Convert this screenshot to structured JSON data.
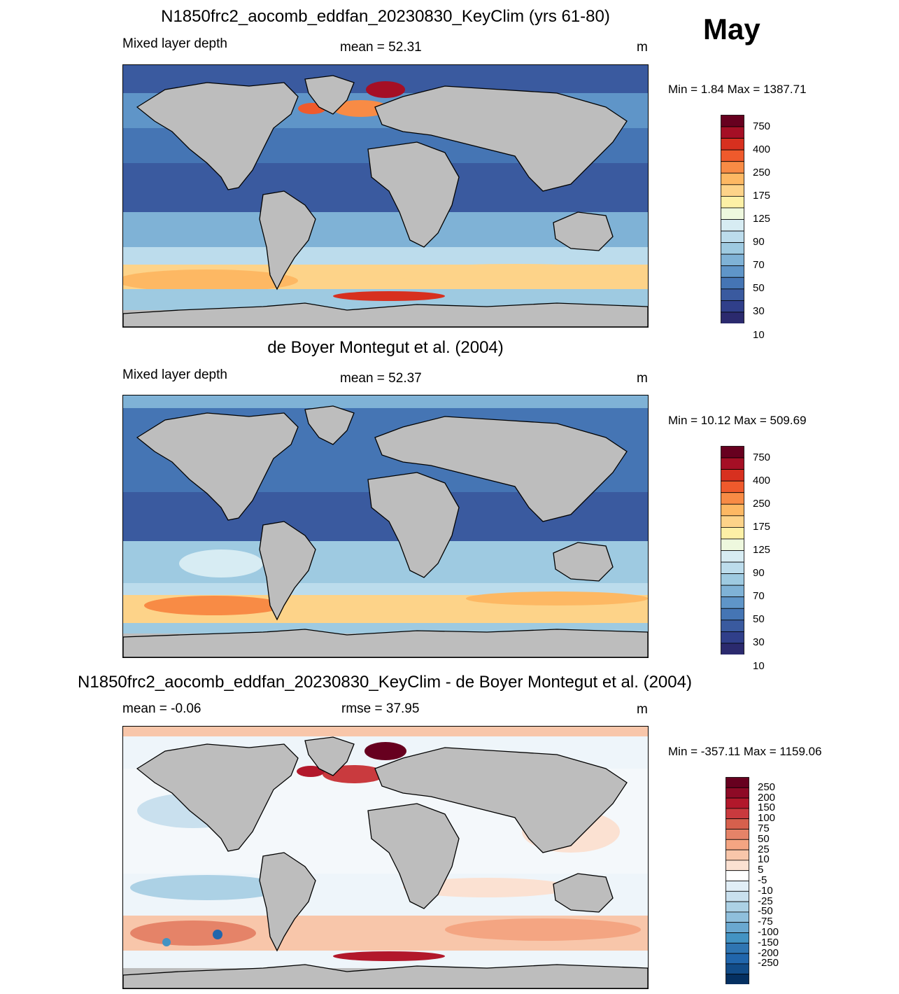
{
  "month": "May",
  "panels": [
    {
      "id": "model",
      "title": "N1850frc2_aocomb_eddfan_20230830_KeyClim (yrs 61-80)",
      "left_label": "Mixed layer depth",
      "center_label": "mean =  52.31",
      "units": "m",
      "minmax": "Min =   1.84 Max = 1387.71",
      "palette": "abs"
    },
    {
      "id": "obs",
      "title": "de Boyer Montegut et al. (2004)",
      "left_label": "Mixed layer depth",
      "center_label": "mean =  52.37",
      "units": "m",
      "minmax": "Min =  10.12 Max = 509.69",
      "palette": "abs"
    },
    {
      "id": "diff",
      "title": "N1850frc2_aocomb_eddfan_20230830_KeyClim - de Boyer Montegut et al. (2004)",
      "left_label": "mean =  -0.06",
      "center_label": "rmse =  37.95",
      "units": "m",
      "minmax": "Min = -357.11 Max = 1159.06",
      "palette": "diff"
    }
  ],
  "colorbars": {
    "abs": {
      "labels": [
        "750",
        "400",
        "250",
        "175",
        "125",
        "90",
        "70",
        "50",
        "30",
        "10"
      ],
      "colors": [
        "#67001f",
        "#a50f25",
        "#d7301f",
        "#ef5a2c",
        "#f88b45",
        "#fdb863",
        "#fdd389",
        "#fdf0a6",
        "#eef8de",
        "#d7ecf3",
        "#bcdcec",
        "#9ecae1",
        "#7fb2d6",
        "#5f95c8",
        "#4575b4",
        "#3a5a9f",
        "#303f8a",
        "#2b2a6e"
      ]
    },
    "diff": {
      "labels": [
        "250",
        "200",
        "150",
        "100",
        "75",
        "50",
        "25",
        "10",
        "5",
        "-5",
        "-10",
        "-25",
        "-50",
        "-75",
        "-100",
        "-150",
        "-200",
        "-250"
      ],
      "colors": [
        "#67001f",
        "#8e0a26",
        "#b2182b",
        "#c93a3e",
        "#d6604d",
        "#e58368",
        "#f4a582",
        "#f8c6aa",
        "#fbe1d2",
        "#ffffff",
        "#e1eef6",
        "#c9e0ee",
        "#acd1e5",
        "#8fbfdc",
        "#6aa8d0",
        "#4393c3",
        "#2f75b2",
        "#2166ac",
        "#124c88",
        "#053061"
      ]
    }
  },
  "colors": {
    "land": "#bdbdbd",
    "ocean_deep_blue": "#3a5a9f",
    "ocean_mid_blue": "#8fbfdc",
    "ocean_light": "#d7ecf3",
    "warm_yellow": "#fdd389",
    "hot_red": "#b2182b"
  }
}
